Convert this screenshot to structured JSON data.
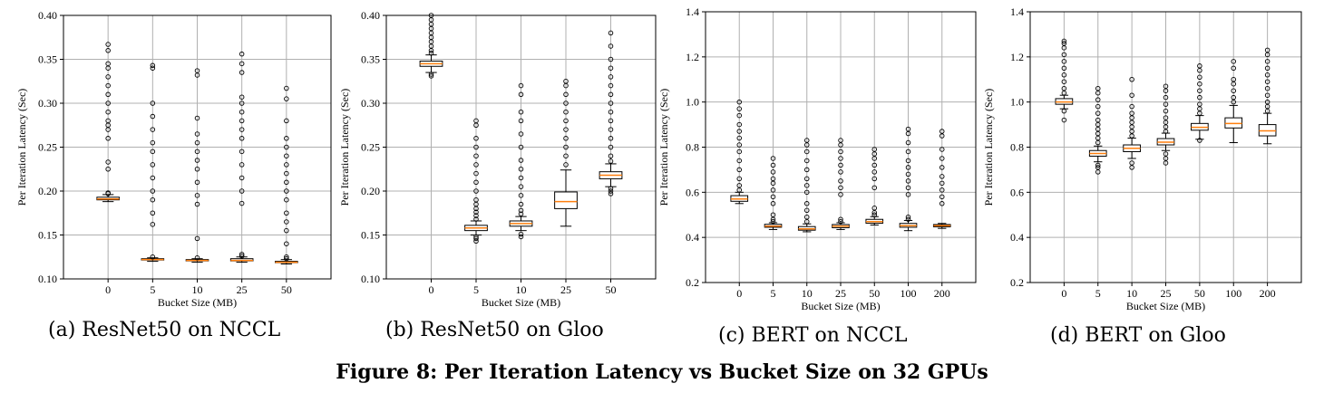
{
  "figure": {
    "title": "Figure 8: Per Iteration Latency vs Bucket Size on 32 GPUs"
  },
  "chart_data": [
    {
      "type": "box",
      "caption": "(a) ResNet50 on NCCL",
      "xlabel": "Bucket Size (MB)",
      "ylabel": "Per Iteration Latency (Sec)",
      "ylim": [
        0.1,
        0.4
      ],
      "yticks": [
        "0.10",
        "0.15",
        "0.20",
        "0.25",
        "0.30",
        "0.35",
        "0.40"
      ],
      "grid": true,
      "categories": [
        "0",
        "5",
        "10",
        "25",
        "50"
      ],
      "boxes": [
        {
          "q1": 0.19,
          "median": 0.191,
          "q3": 0.193,
          "whislo": 0.188,
          "whishi": 0.196,
          "fliers": [
            0.197,
            0.198,
            0.225,
            0.233,
            0.26,
            0.27,
            0.275,
            0.28,
            0.29,
            0.3,
            0.31,
            0.32,
            0.33,
            0.34,
            0.345,
            0.36,
            0.367
          ]
        },
        {
          "q1": 0.1215,
          "median": 0.122,
          "q3": 0.123,
          "whislo": 0.12,
          "whishi": 0.124,
          "fliers": [
            0.125,
            0.162,
            0.175,
            0.19,
            0.2,
            0.215,
            0.23,
            0.245,
            0.255,
            0.27,
            0.285,
            0.3,
            0.34,
            0.343
          ]
        },
        {
          "q1": 0.1205,
          "median": 0.121,
          "q3": 0.122,
          "whislo": 0.119,
          "whishi": 0.123,
          "fliers": [
            0.124,
            0.146,
            0.185,
            0.195,
            0.21,
            0.225,
            0.235,
            0.245,
            0.255,
            0.265,
            0.283,
            0.332,
            0.337
          ]
        },
        {
          "q1": 0.1205,
          "median": 0.121,
          "q3": 0.123,
          "whislo": 0.119,
          "whishi": 0.125,
          "fliers": [
            0.126,
            0.128,
            0.186,
            0.2,
            0.215,
            0.23,
            0.245,
            0.26,
            0.27,
            0.28,
            0.29,
            0.3,
            0.307,
            0.335,
            0.345,
            0.356
          ]
        },
        {
          "q1": 0.1185,
          "median": 0.119,
          "q3": 0.12,
          "whislo": 0.117,
          "whishi": 0.122,
          "fliers": [
            0.123,
            0.125,
            0.14,
            0.155,
            0.165,
            0.175,
            0.19,
            0.2,
            0.21,
            0.22,
            0.23,
            0.24,
            0.25,
            0.26,
            0.28,
            0.305,
            0.317
          ]
        }
      ]
    },
    {
      "type": "box",
      "caption": "(b) ResNet50 on Gloo",
      "xlabel": "Bucket Size (MB)",
      "ylabel": "Per Iteration Latency (Sec)",
      "ylim": [
        0.1,
        0.4
      ],
      "yticks": [
        "0.10",
        "0.15",
        "0.20",
        "0.25",
        "0.30",
        "0.35",
        "0.40"
      ],
      "grid": true,
      "categories": [
        "0",
        "5",
        "10",
        "25",
        "50"
      ],
      "boxes": [
        {
          "q1": 0.342,
          "median": 0.345,
          "q3": 0.348,
          "whislo": 0.335,
          "whishi": 0.355,
          "fliers": [
            0.331,
            0.333,
            0.357,
            0.36,
            0.365,
            0.37,
            0.375,
            0.38,
            0.385,
            0.39,
            0.395,
            0.4
          ]
        },
        {
          "q1": 0.155,
          "median": 0.158,
          "q3": 0.161,
          "whislo": 0.15,
          "whishi": 0.166,
          "fliers": [
            0.143,
            0.146,
            0.148,
            0.168,
            0.172,
            0.176,
            0.18,
            0.185,
            0.19,
            0.2,
            0.21,
            0.22,
            0.23,
            0.24,
            0.25,
            0.26,
            0.275,
            0.28
          ]
        },
        {
          "q1": 0.16,
          "median": 0.163,
          "q3": 0.166,
          "whislo": 0.155,
          "whishi": 0.171,
          "fliers": [
            0.148,
            0.151,
            0.174,
            0.178,
            0.185,
            0.195,
            0.205,
            0.215,
            0.225,
            0.235,
            0.25,
            0.265,
            0.28,
            0.29,
            0.31,
            0.32
          ]
        },
        {
          "q1": 0.18,
          "median": 0.188,
          "q3": 0.199,
          "whislo": 0.16,
          "whishi": 0.224,
          "fliers": [
            0.23,
            0.24,
            0.25,
            0.26,
            0.27,
            0.28,
            0.29,
            0.3,
            0.31,
            0.32,
            0.325
          ]
        },
        {
          "q1": 0.214,
          "median": 0.218,
          "q3": 0.222,
          "whislo": 0.205,
          "whishi": 0.231,
          "fliers": [
            0.197,
            0.2,
            0.203,
            0.234,
            0.24,
            0.25,
            0.26,
            0.27,
            0.28,
            0.29,
            0.3,
            0.31,
            0.32,
            0.33,
            0.34,
            0.35,
            0.365,
            0.38
          ]
        }
      ]
    },
    {
      "type": "box",
      "caption": "(c) BERT on NCCL",
      "xlabel": "Bucket Size (MB)",
      "ylabel": "Per Iteration Latency (Sec)",
      "ylim": [
        0.2,
        1.4
      ],
      "yticks": [
        "0.2",
        "0.4",
        "0.6",
        "0.8",
        "1.0",
        "1.2",
        "1.4"
      ],
      "grid": true,
      "categories": [
        "0",
        "5",
        "10",
        "25",
        "50",
        "100",
        "200"
      ],
      "boxes": [
        {
          "q1": 0.56,
          "median": 0.57,
          "q3": 0.585,
          "whislo": 0.55,
          "whishi": 0.6,
          "fliers": [
            0.61,
            0.63,
            0.66,
            0.7,
            0.74,
            0.78,
            0.81,
            0.84,
            0.87,
            0.9,
            0.94,
            0.97,
            1.0
          ]
        },
        {
          "q1": 0.445,
          "median": 0.45,
          "q3": 0.458,
          "whislo": 0.435,
          "whishi": 0.465,
          "fliers": [
            0.47,
            0.48,
            0.5,
            0.55,
            0.58,
            0.61,
            0.64,
            0.66,
            0.69,
            0.72,
            0.75
          ]
        },
        {
          "q1": 0.432,
          "median": 0.438,
          "q3": 0.448,
          "whislo": 0.425,
          "whishi": 0.46,
          "fliers": [
            0.47,
            0.49,
            0.52,
            0.55,
            0.6,
            0.63,
            0.66,
            0.7,
            0.74,
            0.78,
            0.81,
            0.83
          ]
        },
        {
          "q1": 0.443,
          "median": 0.45,
          "q3": 0.457,
          "whislo": 0.435,
          "whishi": 0.465,
          "fliers": [
            0.47,
            0.48,
            0.59,
            0.62,
            0.65,
            0.69,
            0.72,
            0.75,
            0.78,
            0.81,
            0.83
          ]
        },
        {
          "q1": 0.463,
          "median": 0.47,
          "q3": 0.48,
          "whislo": 0.455,
          "whishi": 0.492,
          "fliers": [
            0.5,
            0.51,
            0.53,
            0.62,
            0.66,
            0.69,
            0.72,
            0.75,
            0.77,
            0.79
          ]
        },
        {
          "q1": 0.445,
          "median": 0.452,
          "q3": 0.462,
          "whislo": 0.43,
          "whishi": 0.475,
          "fliers": [
            0.48,
            0.49,
            0.59,
            0.62,
            0.65,
            0.68,
            0.71,
            0.74,
            0.78,
            0.82,
            0.86,
            0.88
          ]
        },
        {
          "q1": 0.447,
          "median": 0.452,
          "q3": 0.457,
          "whislo": 0.44,
          "whishi": 0.462,
          "fliers": [
            0.55,
            0.58,
            0.61,
            0.64,
            0.67,
            0.71,
            0.75,
            0.79,
            0.85,
            0.87
          ]
        }
      ]
    },
    {
      "type": "box",
      "caption": "(d) BERT on Gloo",
      "xlabel": "Bucket Size (MB)",
      "ylabel": "Per Iteration Latency (Sec)",
      "ylim": [
        0.2,
        1.4
      ],
      "yticks": [
        "0.2",
        "0.4",
        "0.6",
        "0.8",
        "1.0",
        "1.2",
        "1.4"
      ],
      "grid": true,
      "categories": [
        "0",
        "5",
        "10",
        "25",
        "50",
        "100",
        "200"
      ],
      "boxes": [
        {
          "q1": 0.99,
          "median": 1.0,
          "q3": 1.015,
          "whislo": 0.97,
          "whishi": 1.03,
          "fliers": [
            0.92,
            0.96,
            1.04,
            1.06,
            1.09,
            1.12,
            1.15,
            1.18,
            1.21,
            1.24,
            1.26,
            1.27
          ]
        },
        {
          "q1": 0.76,
          "median": 0.772,
          "q3": 0.785,
          "whislo": 0.735,
          "whishi": 0.805,
          "fliers": [
            0.69,
            0.71,
            0.72,
            0.82,
            0.84,
            0.86,
            0.88,
            0.9,
            0.92,
            0.95,
            0.98,
            1.01,
            1.04,
            1.06
          ]
        },
        {
          "q1": 0.78,
          "median": 0.795,
          "q3": 0.81,
          "whislo": 0.75,
          "whishi": 0.84,
          "fliers": [
            0.71,
            0.73,
            0.85,
            0.87,
            0.89,
            0.91,
            0.93,
            0.95,
            0.98,
            1.03,
            1.1
          ]
        },
        {
          "q1": 0.81,
          "median": 0.822,
          "q3": 0.838,
          "whislo": 0.785,
          "whishi": 0.862,
          "fliers": [
            0.73,
            0.75,
            0.77,
            0.87,
            0.89,
            0.91,
            0.93,
            0.96,
            0.99,
            1.02,
            1.05,
            1.07
          ]
        },
        {
          "q1": 0.875,
          "median": 0.888,
          "q3": 0.905,
          "whislo": 0.835,
          "whishi": 0.94,
          "fliers": [
            0.83,
            0.95,
            0.97,
            0.99,
            1.02,
            1.05,
            1.08,
            1.11,
            1.14,
            1.16
          ]
        },
        {
          "q1": 0.885,
          "median": 0.905,
          "q3": 0.93,
          "whislo": 0.82,
          "whishi": 0.985,
          "fliers": [
            1.0,
            1.02,
            1.05,
            1.08,
            1.1,
            1.15,
            1.18
          ]
        },
        {
          "q1": 0.85,
          "median": 0.872,
          "q3": 0.9,
          "whislo": 0.815,
          "whishi": 0.95,
          "fliers": [
            0.96,
            0.98,
            1.0,
            1.03,
            1.06,
            1.09,
            1.12,
            1.15,
            1.18,
            1.21,
            1.23
          ]
        }
      ]
    }
  ]
}
